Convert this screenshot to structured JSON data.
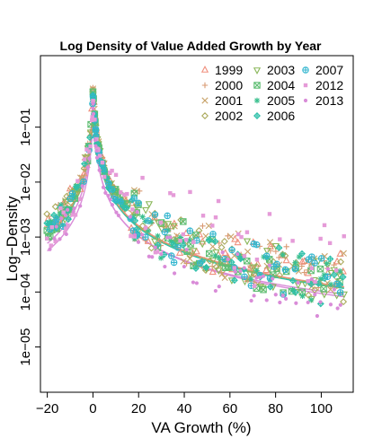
{
  "chart_data": {
    "type": "scatter",
    "title": "Log Density of Value Added Growth by Year",
    "xlabel": "VA Growth (%)",
    "ylabel": "Log−Density",
    "y_scale": "log",
    "xlim": [
      -23,
      114
    ],
    "ylim": [
      1.5e-06,
      2.0
    ],
    "x_ticks": [
      {
        "value": -20,
        "label": "−20"
      },
      {
        "value": 0,
        "label": "0"
      },
      {
        "value": 20,
        "label": "20"
      },
      {
        "value": 40,
        "label": "40"
      },
      {
        "value": 60,
        "label": "60"
      },
      {
        "value": 80,
        "label": "80"
      },
      {
        "value": 100,
        "label": "100"
      }
    ],
    "y_ticks": [
      {
        "value": 1e-05,
        "label": "1e−05"
      },
      {
        "value": 0.0001,
        "label": "1e−04"
      },
      {
        "value": 0.001,
        "label": "1e−03"
      },
      {
        "value": 0.01,
        "label": "1e−02"
      },
      {
        "value": 0.1,
        "label": "1e−01"
      }
    ],
    "legend_position": "top-right",
    "grid": false,
    "series": [
      {
        "name": "1999",
        "marker": "triangle-up-open",
        "color": "#F0907E",
        "peak": 0.48,
        "decay": 0.0021,
        "scale": 0.18,
        "seed": 11
      },
      {
        "name": "2000",
        "marker": "plus",
        "color": "#D99A73",
        "peak": 0.52,
        "decay": 0.002,
        "scale": 0.18,
        "seed": 23
      },
      {
        "name": "2001",
        "marker": "cross",
        "color": "#C9A36A",
        "peak": 0.5,
        "decay": 0.0019,
        "scale": 0.17,
        "seed": 37
      },
      {
        "name": "2002",
        "marker": "diamond-open",
        "color": "#ABAA5C",
        "peak": 0.46,
        "decay": 0.0022,
        "scale": 0.18,
        "seed": 41
      },
      {
        "name": "2003",
        "marker": "triangle-down-open",
        "color": "#8AB75A",
        "peak": 0.45,
        "decay": 0.0024,
        "scale": 0.19,
        "seed": 53
      },
      {
        "name": "2004",
        "marker": "square-cross",
        "color": "#5FBE73",
        "peak": 0.44,
        "decay": 0.0025,
        "scale": 0.19,
        "seed": 67
      },
      {
        "name": "2005",
        "marker": "asterisk",
        "color": "#3BC08F",
        "peak": 0.4,
        "decay": 0.0026,
        "scale": 0.2,
        "seed": 71
      },
      {
        "name": "2006",
        "marker": "diamond-plus",
        "color": "#2FC0AA",
        "peak": 0.38,
        "decay": 0.0025,
        "scale": 0.2,
        "seed": 83
      },
      {
        "name": "2007",
        "marker": "circle-plus",
        "color": "#33B6CF",
        "peak": 0.36,
        "decay": 0.0027,
        "scale": 0.21,
        "seed": 97
      },
      {
        "name": "2012",
        "marker": "square-filled",
        "color": "#E59BD8",
        "peak": 0.3,
        "decay": 0.006,
        "scale": 0.42,
        "seed": 101
      },
      {
        "name": "2013",
        "marker": "circle-filled",
        "color": "#D98CD8",
        "peak": 0.22,
        "decay": 0.0016,
        "scale": 0.16,
        "seed": 113
      }
    ],
    "fitted_curves": [
      {
        "series": "2012",
        "color": "#D98CD8",
        "peak": 0.16,
        "decay": 0.0018,
        "scale": 0.55,
        "neg_decay": 0.00012
      },
      {
        "series": "2013",
        "color": "#D98CD8",
        "peak": 0.22,
        "decay": 0.00045,
        "scale": 0.12,
        "neg_decay": 8e-05
      },
      {
        "series": "2006",
        "color": "#2FC0AA",
        "peak": 0.3,
        "decay": 0.0009,
        "scale": 0.18,
        "neg_decay": 8e-05
      },
      {
        "series": "2003",
        "color": "#8AB75A",
        "peak": 0.32,
        "decay": 0.0008,
        "scale": 0.17,
        "neg_decay": 8e-05
      },
      {
        "series": "1999",
        "color": "#F0907E",
        "peak": 0.33,
        "decay": 0.0007,
        "scale": 0.16,
        "neg_decay": 8e-05
      }
    ]
  }
}
